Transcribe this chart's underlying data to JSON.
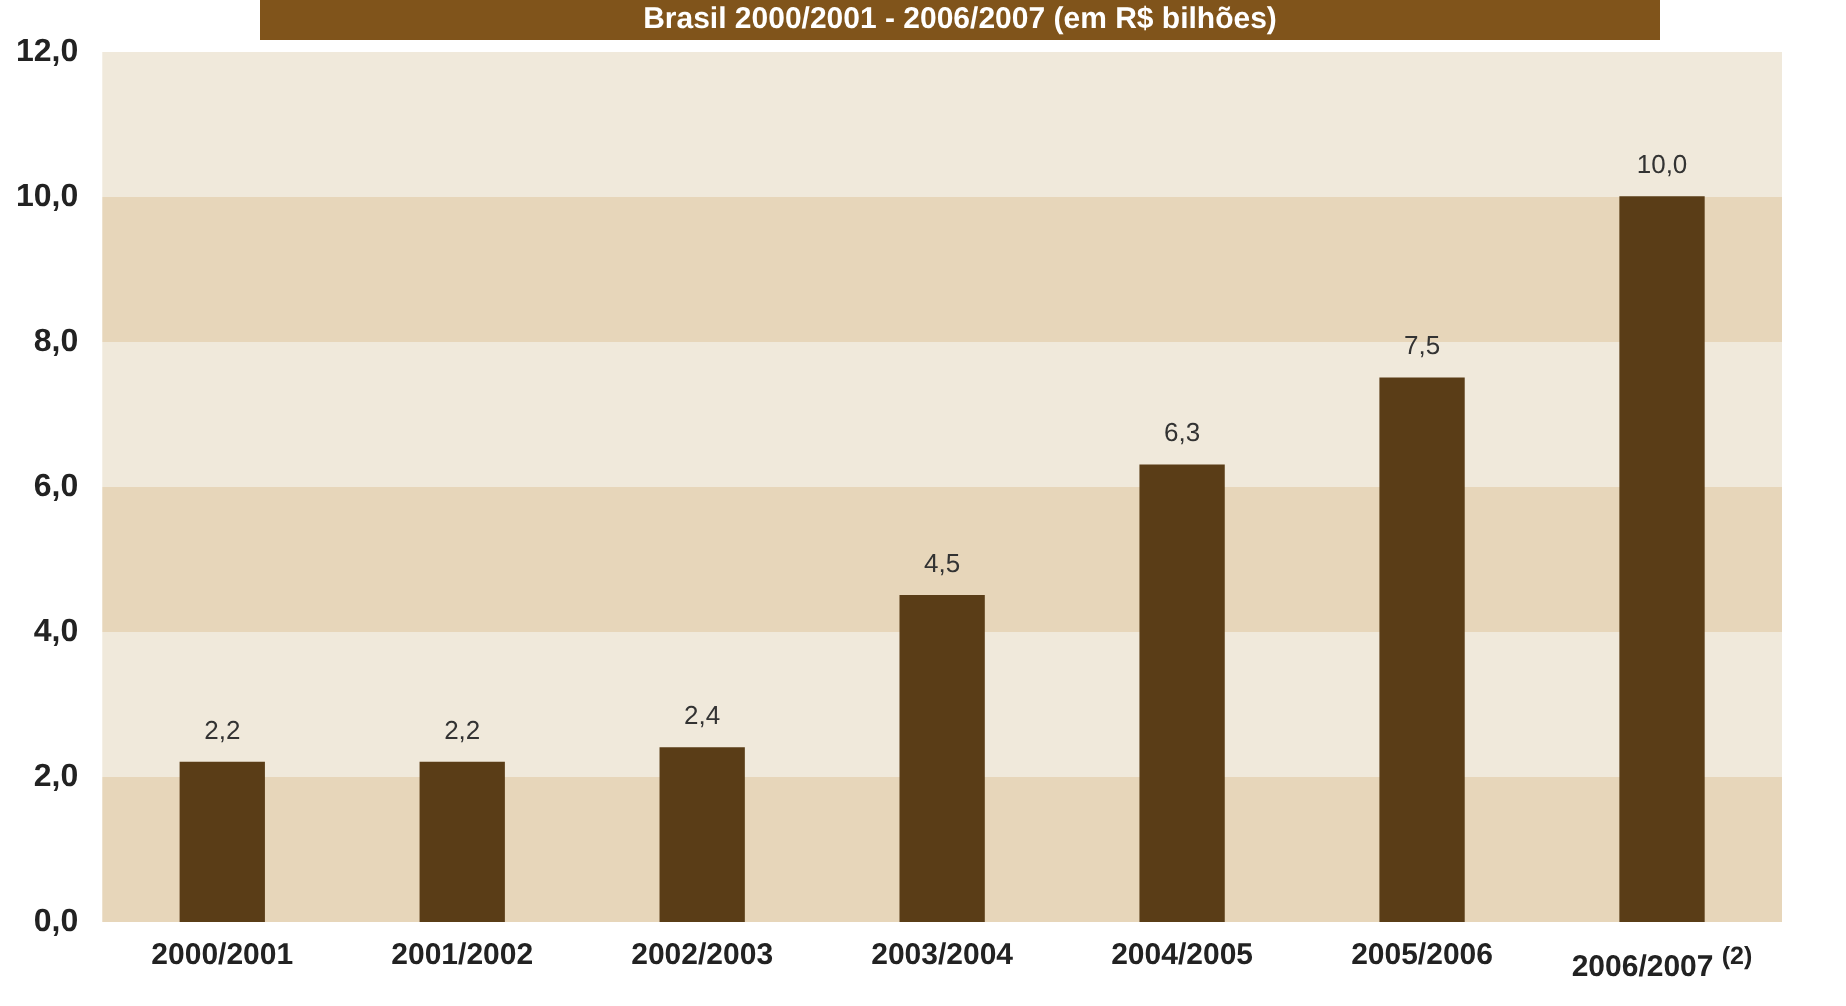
{
  "chart_data": {
    "type": "bar",
    "title": "Brasil 2000/2001 - 2006/2007 (em R$ bilhões)",
    "categories": [
      "2000/2001",
      "2001/2002",
      "2002/2003",
      "2003/2004",
      "2004/2005",
      "2005/2006",
      "2006/2007 $^{(2)}$"
    ],
    "values": [
      2.2,
      2.2,
      2.4,
      4.5,
      6.3,
      7.5,
      10.0
    ],
    "value_labels": [
      "2,2",
      "2,2",
      "2,4",
      "4,5",
      "6,3",
      "7,5",
      "10,0"
    ],
    "color": "#5a3d17",
    "ylim": [
      0,
      12
    ],
    "yticks": [
      {
        "value": 0,
        "label": "0,0"
      },
      {
        "value": 2,
        "label": "2,0"
      },
      {
        "value": 4,
        "label": "4,0"
      },
      {
        "value": 6,
        "label": "6,0"
      },
      {
        "value": 8,
        "label": "8,0"
      },
      {
        "value": 10,
        "label": "10,0"
      },
      {
        "value": 12,
        "label": "12,0"
      }
    ],
    "bands": [
      {
        "axis": "y",
        "from": 0,
        "to": 2,
        "color": "#e7d6ba"
      },
      {
        "axis": "y",
        "from": 2,
        "to": 4,
        "color": "#f0e9db"
      },
      {
        "axis": "y",
        "from": 4,
        "to": 6,
        "color": "#e7d6ba"
      },
      {
        "axis": "y",
        "from": 6,
        "to": 8,
        "color": "#f0e9db"
      },
      {
        "axis": "y",
        "from": 8,
        "to": 10,
        "color": "#e7d6ba"
      },
      {
        "axis": "y",
        "from": 10,
        "to": 12,
        "color": "#f0e9db"
      }
    ]
  }
}
